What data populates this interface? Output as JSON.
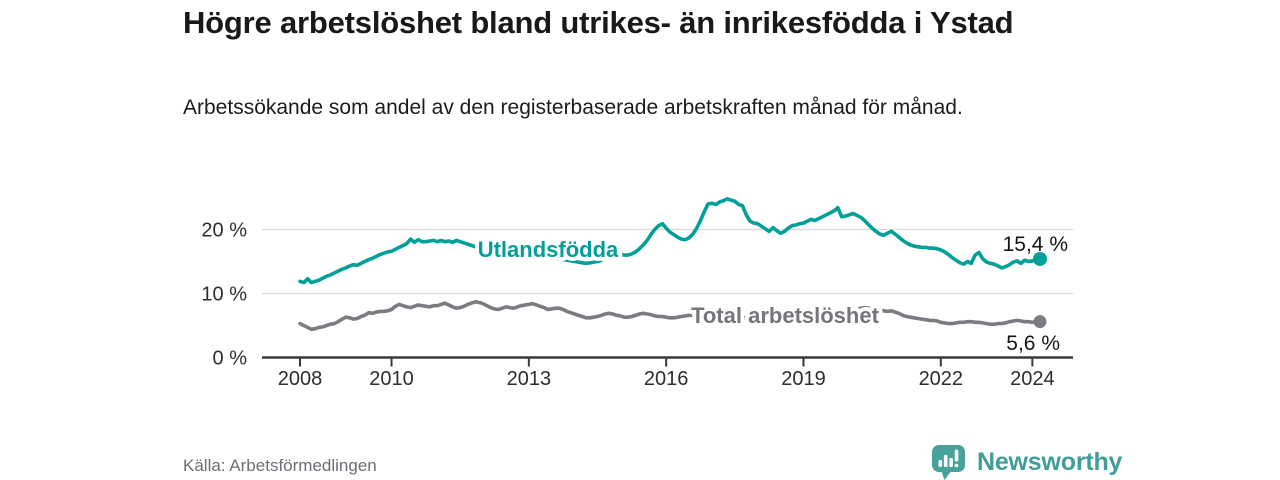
{
  "header": {
    "title": "Högre arbetslöshet bland utrikes- än inrikesfödda i Ystad",
    "subtitle": "Arbetssökande som andel av den registerbaserade arbetskraften månad för månad."
  },
  "footer": {
    "source": "Källa: Arbetsförmedlingen",
    "brand": "Newsworthy"
  },
  "colors": {
    "foreign_born": "#00a09a",
    "total": "#7b7c81",
    "total_label": "#75767b",
    "grid": "#d9d9d9",
    "axis": "#3a3a3e",
    "axis_text": "#2d2d2d",
    "value_text": "#151515",
    "brand_teal": "#3f9e98"
  },
  "chart_data": {
    "type": "line",
    "title": "Högre arbetslöshet bland utrikes- än inrikesfödda i Ystad",
    "x_start": "2008-01",
    "x_end": "2024-03",
    "x_ticks": [
      2008,
      2010,
      2013,
      2016,
      2019,
      2022,
      2024
    ],
    "y_ticks": [
      0,
      10,
      20
    ],
    "y_tick_labels": [
      "0 %",
      "10 %",
      "20 %"
    ],
    "ylim": [
      0,
      26
    ],
    "y_unit": "%",
    "grid": true,
    "legend_position": "inline",
    "series": [
      {
        "name": "Utlandsfödda",
        "color_key": "foreign_born",
        "end_label": "15,4 %",
        "end_value": 15.4,
        "values": [
          11.9,
          11.7,
          12.3,
          11.7,
          11.9,
          12.1,
          12.4,
          12.7,
          12.9,
          13.2,
          13.5,
          13.8,
          14.0,
          14.3,
          14.5,
          14.4,
          14.7,
          15.0,
          15.3,
          15.5,
          15.8,
          16.1,
          16.3,
          16.5,
          16.6,
          16.9,
          17.2,
          17.5,
          17.8,
          18.5,
          18.0,
          18.4,
          18.1,
          18.1,
          18.2,
          18.3,
          18.1,
          18.3,
          18.1,
          18.2,
          18.0,
          18.3,
          18.1,
          17.9,
          17.7,
          17.5,
          17.3,
          17.1,
          17.0,
          16.9,
          16.8,
          16.6,
          16.6,
          16.5,
          16.4,
          16.4,
          16.3,
          16.2,
          16.1,
          16.0,
          16.0,
          15.9,
          15.8,
          15.8,
          15.7,
          15.6,
          15.6,
          15.5,
          15.4,
          15.3,
          15.2,
          15.1,
          15.0,
          14.9,
          14.8,
          14.7,
          14.8,
          14.9,
          15.0,
          15.2,
          15.6,
          16.0,
          16.2,
          16.1,
          16.1,
          16.0,
          16.0,
          16.2,
          16.5,
          17.0,
          17.6,
          18.3,
          19.2,
          20.0,
          20.6,
          20.9,
          20.2,
          19.6,
          19.2,
          18.8,
          18.5,
          18.4,
          18.7,
          19.3,
          20.2,
          21.4,
          22.8,
          24.0,
          24.1,
          23.9,
          24.3,
          24.5,
          24.8,
          24.6,
          24.4,
          23.9,
          23.7,
          22.3,
          21.3,
          21.0,
          20.9,
          20.5,
          20.1,
          19.7,
          20.3,
          19.8,
          19.4,
          19.7,
          20.2,
          20.6,
          20.7,
          20.9,
          21.0,
          21.3,
          21.6,
          21.4,
          21.7,
          22.0,
          22.3,
          22.6,
          22.9,
          23.4,
          22.0,
          22.1,
          22.3,
          22.5,
          22.2,
          21.9,
          21.4,
          20.8,
          20.2,
          19.7,
          19.3,
          19.1,
          19.4,
          19.7,
          19.3,
          18.8,
          18.3,
          17.9,
          17.6,
          17.4,
          17.3,
          17.2,
          17.2,
          17.1,
          17.1,
          17.0,
          16.8,
          16.5,
          16.1,
          15.6,
          15.2,
          14.8,
          14.6,
          15.0,
          14.7,
          16.0,
          16.4,
          15.4,
          14.9,
          14.7,
          14.6,
          14.3,
          14.0,
          14.2,
          14.5,
          14.9,
          15.1,
          14.7,
          15.2,
          15.0,
          15.1,
          15.3,
          15.4
        ]
      },
      {
        "name": "Total arbetslöshet",
        "color_key": "total",
        "end_label": "5,6 %",
        "end_value": 5.6,
        "values": [
          5.3,
          5.0,
          4.7,
          4.4,
          4.5,
          4.7,
          4.8,
          5.0,
          5.2,
          5.3,
          5.6,
          6.0,
          6.3,
          6.2,
          6.0,
          6.1,
          6.4,
          6.6,
          7.0,
          6.9,
          7.1,
          7.2,
          7.2,
          7.3,
          7.5,
          8.0,
          8.3,
          8.1,
          7.9,
          7.8,
          8.0,
          8.2,
          8.1,
          8.0,
          7.9,
          8.1,
          8.1,
          8.3,
          8.5,
          8.2,
          7.9,
          7.7,
          7.8,
          8.0,
          8.3,
          8.5,
          8.7,
          8.6,
          8.4,
          8.1,
          7.8,
          7.6,
          7.5,
          7.7,
          7.9,
          7.8,
          7.7,
          7.9,
          8.1,
          8.2,
          8.3,
          8.4,
          8.2,
          8.0,
          7.8,
          7.5,
          7.6,
          7.7,
          7.7,
          7.5,
          7.2,
          7.0,
          6.8,
          6.6,
          6.4,
          6.2,
          6.2,
          6.3,
          6.4,
          6.6,
          6.8,
          6.9,
          6.8,
          6.6,
          6.5,
          6.3,
          6.3,
          6.4,
          6.6,
          6.8,
          6.9,
          6.8,
          6.7,
          6.5,
          6.4,
          6.4,
          6.3,
          6.2,
          6.2,
          6.3,
          6.4,
          6.5,
          6.6,
          6.6,
          6.5,
          6.4,
          6.4,
          6.5,
          6.5,
          6.6,
          6.8,
          6.7,
          6.6,
          6.6,
          6.5,
          6.4,
          6.3,
          6.2,
          6.2,
          6.1,
          6.1,
          6.0,
          5.9,
          6.0,
          6.1,
          6.0,
          5.9,
          5.9,
          6.0,
          6.0,
          6.1,
          6.1,
          6.0,
          6.1,
          6.2,
          6.1,
          6.2,
          6.3,
          6.4,
          6.3,
          6.2,
          6.3,
          6.4,
          6.5,
          6.7,
          7.0,
          7.4,
          7.7,
          7.8,
          7.7,
          7.6,
          7.5,
          7.4,
          7.3,
          7.2,
          7.3,
          7.1,
          6.9,
          6.6,
          6.4,
          6.3,
          6.2,
          6.1,
          6.0,
          5.9,
          5.8,
          5.8,
          5.7,
          5.5,
          5.4,
          5.3,
          5.3,
          5.4,
          5.5,
          5.5,
          5.6,
          5.6,
          5.5,
          5.5,
          5.4,
          5.3,
          5.2,
          5.2,
          5.3,
          5.3,
          5.4,
          5.6,
          5.7,
          5.8,
          5.7,
          5.6,
          5.6,
          5.5,
          5.6,
          5.6
        ]
      }
    ]
  }
}
